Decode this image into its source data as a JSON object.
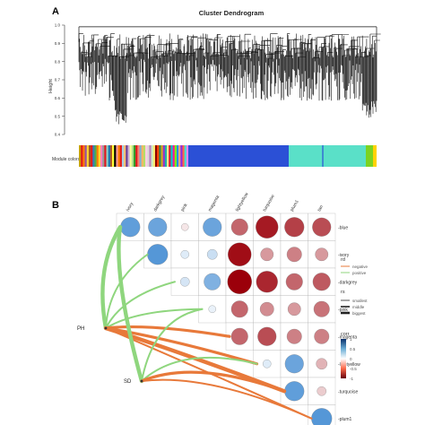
{
  "panel_a": {
    "label": "A",
    "title": "Cluster Dendrogram",
    "ylabel": "Height",
    "yticks": [
      "0.4",
      "0.5",
      "0.6",
      "0.7",
      "0.8",
      "0.9",
      "1.0"
    ],
    "module_label": "Module colors",
    "module_colors": [
      "#c8a000",
      "#e41a1c",
      "#ff7f00",
      "#984ea3",
      "#ffd92f",
      "#a65628",
      "#e41a1c",
      "#377eb8",
      "#4daf4a",
      "#ff7f00",
      "#ffd92f",
      "#f781bf",
      "#999999",
      "#e41a1c",
      "#8dd3c7",
      "#1f78b4",
      "#b15928",
      "#ffff33",
      "#000000",
      "#fb9a99",
      "#ff7f00",
      "#e41a1c",
      "#a6cee3",
      "#fdbf6f",
      "#6a3d9a",
      "#cab2d6",
      "#ffff99",
      "#b2df8a",
      "#33a02c",
      "#e31a1c",
      "#fb8072",
      "#80b1d3",
      "#fdb462",
      "#b3de69",
      "#fccde5",
      "#d9d9d9",
      "#bc80bd",
      "#ccebc5",
      "#ffed6f",
      "#8b0000",
      "#ff4500",
      "#2e8b57",
      "#daa520",
      "#9932cc",
      "#20b2aa",
      "#f0e68c",
      "#dc143c",
      "#00ced1",
      "#ff1493",
      "#7cfc00",
      "#1e90ff",
      "#ffa07a",
      "#8a2be2",
      "#ff6347",
      "#40e0d0",
      "#ee82ee"
    ],
    "blue_block": "#2b50d6",
    "turquoise_block": "#5ae0c8",
    "green_block": "#7cd321",
    "yellow_block": "#ffd200"
  },
  "panel_b": {
    "label": "B",
    "col_labels": [
      "ivory",
      "darkgrey",
      "pink",
      "magenta",
      "lightyellow",
      "turquoise",
      "plum1",
      "tan"
    ],
    "row_labels": [
      "blue",
      "ivory",
      "darkgrey",
      "pink",
      "magenta",
      "lightyellow",
      "turquoise",
      "plum1"
    ],
    "traits": [
      "PH",
      "SD"
    ],
    "legend": {
      "rd_title": "rd",
      "rd_items": [
        {
          "label": "negative",
          "color": "#e8793a"
        },
        {
          "label": "positive",
          "color": "#8fd67e"
        }
      ],
      "rs_title": "rs",
      "rs_items": [
        "smallest",
        "middle",
        "biggest"
      ],
      "corr_title": "corr",
      "corr_ticks": [
        "1",
        "0.5",
        "0",
        "-0.5",
        "-1"
      ]
    },
    "corr_matrix": [
      [
        0.75,
        0.7,
        -0.1,
        0.7,
        -0.6,
        -0.9,
        -0.75,
        -0.7
      ],
      [
        null,
        0.8,
        0.15,
        0.25,
        -0.95,
        -0.4,
        -0.5,
        -0.4
      ],
      [
        null,
        null,
        0.2,
        0.6,
        -1.0,
        -0.85,
        -0.6,
        -0.65
      ],
      [
        null,
        null,
        null,
        0.1,
        -0.6,
        -0.45,
        -0.4,
        -0.55
      ],
      [
        null,
        null,
        null,
        null,
        -0.6,
        -0.7,
        -0.5,
        -0.5
      ],
      [
        null,
        null,
        null,
        null,
        null,
        0.15,
        0.7,
        -0.3
      ],
      [
        null,
        null,
        null,
        null,
        null,
        null,
        0.75,
        -0.2
      ],
      [
        null,
        null,
        null,
        null,
        null,
        null,
        null,
        0.8
      ]
    ],
    "links": [
      {
        "from": "PH",
        "to_row": 0,
        "type": "positive",
        "weight": 3
      },
      {
        "from": "PH",
        "to_row": 1,
        "type": "positive",
        "weight": 1
      },
      {
        "from": "PH",
        "to_row": 2,
        "type": "positive",
        "weight": 1
      },
      {
        "from": "PH",
        "to_row": 3,
        "type": "positive",
        "weight": 1
      },
      {
        "from": "PH",
        "to_row": 4,
        "type": "negative",
        "weight": 2
      },
      {
        "from": "PH",
        "to_row": 5,
        "type": "negative",
        "weight": 2
      },
      {
        "from": "PH",
        "to_row": 6,
        "type": "negative",
        "weight": 3
      },
      {
        "from": "PH",
        "to_row": 7,
        "type": "negative",
        "weight": 1
      },
      {
        "from": "SD",
        "to_row": 0,
        "type": "positive",
        "weight": 3
      },
      {
        "from": "SD",
        "to_row": 3,
        "type": "positive",
        "weight": 1
      },
      {
        "from": "SD",
        "to_row": 5,
        "type": "positive",
        "weight": 1
      },
      {
        "from": "SD",
        "to_row": 6,
        "type": "negative",
        "weight": 2
      },
      {
        "from": "SD",
        "to_row": 7,
        "type": "negative",
        "weight": 1
      }
    ]
  }
}
